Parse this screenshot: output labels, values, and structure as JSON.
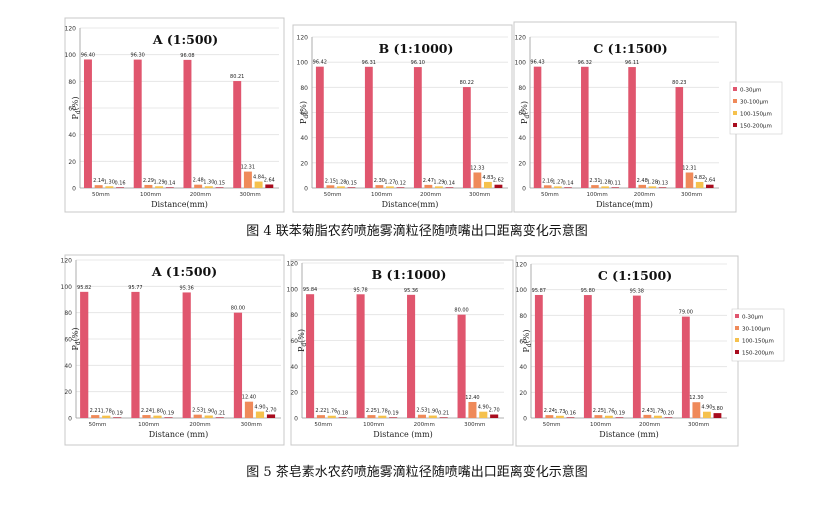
{
  "figures": [
    {
      "caption": "图 4 联苯菊脂农药喷施雾滴粒径随喷嘴出口距离变化示意图",
      "ylabel": "Pd(%)",
      "xlabel": "Distance(mm)"
    },
    {
      "caption": "图 5 茶皂素水农药喷施雾滴粒径随喷嘴出口距离变化示意图",
      "ylabel": "Pd(%)",
      "xlabel": "Distance (mm)"
    }
  ],
  "legend": [
    "0-30μm",
    "30-100μm",
    "100-150μm",
    "150-200μm"
  ],
  "colors": [
    "#e0566e",
    "#ef8a5a",
    "#f5c14d",
    "#a80c1e"
  ],
  "chart_data": [
    {
      "type": "bar",
      "title": "A (1:500)",
      "xlabel": "Distance(mm)",
      "ylabel": "Pd(%)",
      "ylim": [
        0,
        120
      ],
      "categories": [
        "50mm",
        "100mm",
        "200mm",
        "300mm"
      ],
      "series": [
        {
          "name": "0-30μm",
          "values": [
            96.4,
            96.3,
            96.08,
            80.21
          ]
        },
        {
          "name": "30-100μm",
          "values": [
            2.14,
            2.29,
            2.48,
            12.31
          ]
        },
        {
          "name": "100-150μm",
          "values": [
            1.3,
            1.29,
            1.3,
            4.84
          ]
        },
        {
          "name": "150-200μm",
          "values": [
            0.16,
            0.14,
            0.15,
            2.64
          ]
        }
      ]
    },
    {
      "type": "bar",
      "title": "B (1:1000)",
      "xlabel": "Distance(mm)",
      "ylabel": "Pd(%)",
      "ylim": [
        0,
        120
      ],
      "categories": [
        "50mm",
        "100mm",
        "200mm",
        "300mm"
      ],
      "series": [
        {
          "name": "0-30μm",
          "values": [
            96.42,
            96.31,
            96.1,
            80.22
          ]
        },
        {
          "name": "30-100μm",
          "values": [
            2.15,
            2.3,
            2.47,
            12.33
          ]
        },
        {
          "name": "100-150μm",
          "values": [
            1.28,
            1.27,
            1.29,
            4.83
          ]
        },
        {
          "name": "150-200μm",
          "values": [
            0.15,
            0.12,
            0.14,
            2.62
          ]
        }
      ]
    },
    {
      "type": "bar",
      "title": "C (1:1500)",
      "xlabel": "Distance(mm)",
      "ylabel": "Pd(%)",
      "ylim": [
        0,
        120
      ],
      "categories": [
        "50mm",
        "100mm",
        "200mm",
        "300mm"
      ],
      "series": [
        {
          "name": "0-30μm",
          "values": [
            96.43,
            96.32,
            96.11,
            80.23
          ]
        },
        {
          "name": "30-100μm",
          "values": [
            2.16,
            2.31,
            2.48,
            12.31
          ]
        },
        {
          "name": "100-150μm",
          "values": [
            1.27,
            1.28,
            1.28,
            4.82
          ]
        },
        {
          "name": "150-200μm",
          "values": [
            0.14,
            0.11,
            0.13,
            2.64
          ]
        }
      ]
    },
    {
      "type": "bar",
      "title": "A (1:500)",
      "xlabel": "Distance (mm)",
      "ylabel": "Pd(%)",
      "ylim": [
        0,
        120
      ],
      "categories": [
        "50mm",
        "100mm",
        "200mm",
        "300mm"
      ],
      "series": [
        {
          "name": "0-30μm",
          "values": [
            95.82,
            95.77,
            95.36,
            80.0
          ]
        },
        {
          "name": "30-100μm",
          "values": [
            2.21,
            2.24,
            2.53,
            12.4
          ]
        },
        {
          "name": "100-150μm",
          "values": [
            1.78,
            1.8,
            1.9,
            4.9
          ]
        },
        {
          "name": "150-200μm",
          "values": [
            0.19,
            0.19,
            0.21,
            2.7
          ]
        }
      ]
    },
    {
      "type": "bar",
      "title": "B (1:1000)",
      "xlabel": "Distance (mm)",
      "ylabel": "Pd(%)",
      "ylim": [
        0,
        120
      ],
      "categories": [
        "50mm",
        "100mm",
        "200mm",
        "300mm"
      ],
      "series": [
        {
          "name": "0-30μm",
          "values": [
            95.84,
            95.78,
            95.36,
            80.0
          ]
        },
        {
          "name": "30-100μm",
          "values": [
            2.22,
            2.25,
            2.53,
            12.4
          ]
        },
        {
          "name": "100-150μm",
          "values": [
            1.76,
            1.78,
            1.9,
            4.9
          ]
        },
        {
          "name": "150-200μm",
          "values": [
            0.18,
            0.19,
            0.21,
            2.7
          ]
        }
      ]
    },
    {
      "type": "bar",
      "title": "C (1:1500)",
      "xlabel": "Distance (mm)",
      "ylabel": "Pd(%)",
      "ylim": [
        0,
        120
      ],
      "categories": [
        "50mm",
        "100mm",
        "200mm",
        "300mm"
      ],
      "series": [
        {
          "name": "0-30μm",
          "values": [
            95.87,
            95.8,
            95.38,
            79.0
          ]
        },
        {
          "name": "30-100μm",
          "values": [
            2.24,
            2.25,
            2.43,
            12.3
          ]
        },
        {
          "name": "100-150μm",
          "values": [
            1.73,
            1.76,
            1.79,
            4.9
          ]
        },
        {
          "name": "150-200μm",
          "values": [
            0.16,
            0.19,
            0.2,
            3.8
          ]
        }
      ]
    }
  ]
}
